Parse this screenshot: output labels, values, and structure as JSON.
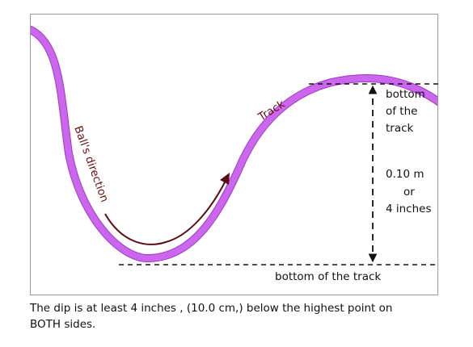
{
  "diagram": {
    "track_label": "Track",
    "ball_direction_label": "Ball's direction",
    "top_label": [
      "bottom",
      "of the",
      "track"
    ],
    "height_label": [
      "0.10 m",
      "or",
      "4 inches"
    ],
    "bottom_label": "bottom of the track",
    "colors": {
      "track": "#cc66ee",
      "track_edge": "#8a2aa8",
      "direction_arrow": "#5a0d12",
      "label_red": "#6b0f14",
      "dashed": "#111111"
    }
  },
  "caption": {
    "line1": "The dip is at least 4 inches , (10.0 cm,) below the highest point on",
    "line2": "BOTH sides."
  }
}
